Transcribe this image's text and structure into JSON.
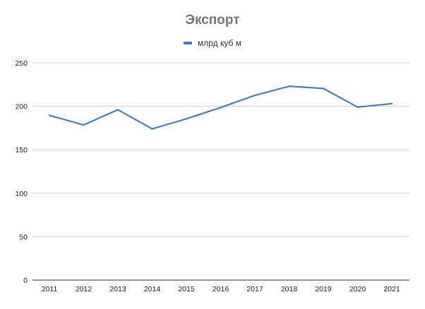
{
  "chart_data": {
    "type": "line",
    "title": "Экспорт",
    "xlabel": "",
    "ylabel": "",
    "categories": [
      "2011",
      "2012",
      "2013",
      "2014",
      "2015",
      "2016",
      "2017",
      "2018",
      "2019",
      "2020",
      "2021"
    ],
    "series": [
      {
        "name": "млрд куб м",
        "color": "#4a7ebb",
        "values": [
          189.5,
          178.5,
          196,
          174,
          185.5,
          198.5,
          212.5,
          223,
          220.5,
          199,
          203
        ]
      }
    ],
    "ylim": [
      0,
      250
    ],
    "yticks": [
      0,
      50,
      100,
      150,
      200,
      250
    ],
    "grid": true,
    "legend_position": "top"
  }
}
